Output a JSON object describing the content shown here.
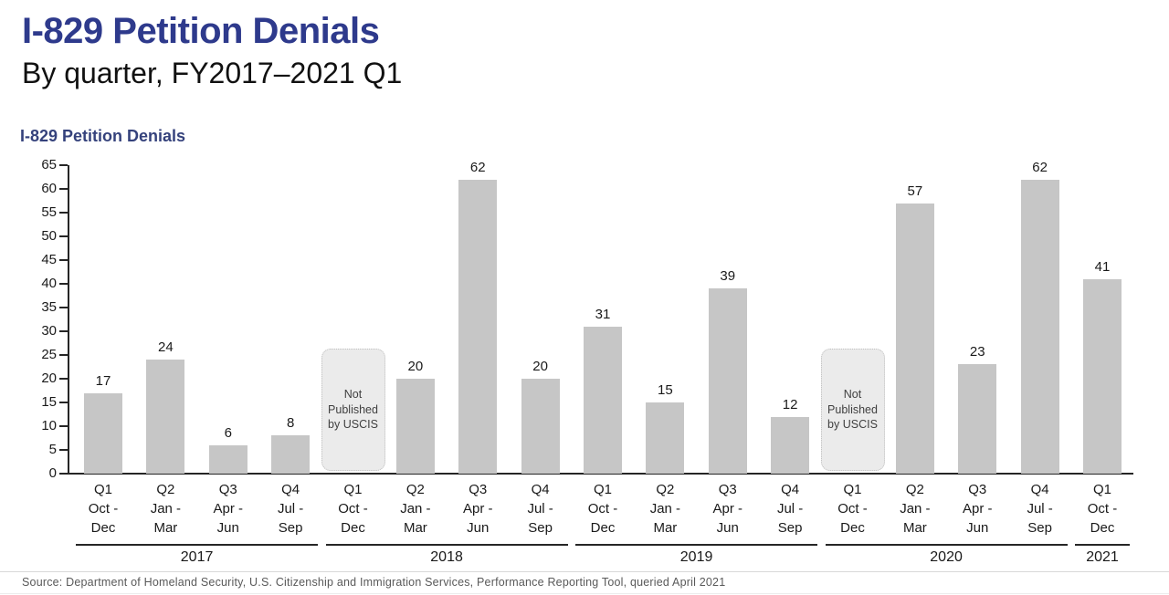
{
  "header": {
    "title": "I-829 Petition Denials",
    "subtitle": "By quarter, FY2017–2021 Q1"
  },
  "chart_heading": "I-829 Petition Denials",
  "chart_data": {
    "type": "bar",
    "title": "I-829 Petition Denials",
    "xlabel": "",
    "ylabel": "",
    "ylim": [
      0,
      65
    ],
    "ytick_step": 5,
    "grid": false,
    "legend": "none",
    "bar_color": "#c6c6c6",
    "categories": [
      [
        "Q1",
        "Oct -",
        "Dec"
      ],
      [
        "Q2",
        "Jan -",
        "Mar"
      ],
      [
        "Q3",
        "Apr -",
        "Jun"
      ],
      [
        "Q4",
        "Jul -",
        "Sep"
      ],
      [
        "Q1",
        "Oct -",
        "Dec"
      ],
      [
        "Q2",
        "Jan -",
        "Mar"
      ],
      [
        "Q3",
        "Apr -",
        "Jun"
      ],
      [
        "Q4",
        "Jul -",
        "Sep"
      ],
      [
        "Q1",
        "Oct -",
        "Dec"
      ],
      [
        "Q2",
        "Jan -",
        "Mar"
      ],
      [
        "Q3",
        "Apr -",
        "Jun"
      ],
      [
        "Q4",
        "Jul -",
        "Sep"
      ],
      [
        "Q1",
        "Oct -",
        "Dec"
      ],
      [
        "Q2",
        "Jan -",
        "Mar"
      ],
      [
        "Q3",
        "Apr -",
        "Jun"
      ],
      [
        "Q4",
        "Jul -",
        "Sep"
      ],
      [
        "Q1",
        "Oct -",
        "Dec"
      ]
    ],
    "values": [
      17,
      24,
      6,
      8,
      null,
      20,
      62,
      20,
      31,
      15,
      39,
      12,
      null,
      57,
      23,
      62,
      41
    ],
    "not_published_label": "Not Published by USCIS",
    "not_published_indexes": [
      4,
      12
    ],
    "year_groups": [
      {
        "label": "2017",
        "count": 4
      },
      {
        "label": "2018",
        "count": 4
      },
      {
        "label": "2019",
        "count": 4
      },
      {
        "label": "2020",
        "count": 4
      },
      {
        "label": "2021",
        "count": 1
      }
    ]
  },
  "source": "Source: Department of Homeland Security, U.S. Citizenship and Immigration Services, Performance Reporting Tool, queried April 2021",
  "colors": {
    "title_navy": "#2e3a8c",
    "heading_navy": "#35427c",
    "bar_gray": "#c6c6c6",
    "not_published_bg": "#ebebeb",
    "axis_black": "#262626",
    "source_gray": "#595959"
  }
}
